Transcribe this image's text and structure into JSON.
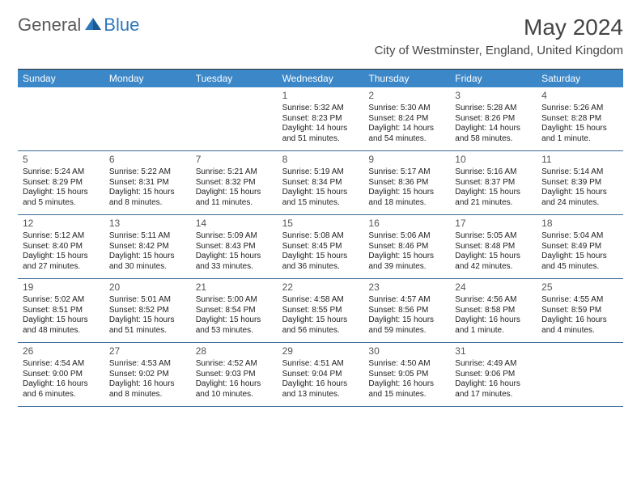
{
  "logo": {
    "general": "General",
    "blue": "Blue"
  },
  "title": "May 2024",
  "location": "City of Westminster, England, United Kingdom",
  "colors": {
    "header_bg": "#3b87c8",
    "week_border": "#3b6a96",
    "logo_gray": "#5a5a5a",
    "logo_blue": "#2f78bd"
  },
  "day_names": [
    "Sunday",
    "Monday",
    "Tuesday",
    "Wednesday",
    "Thursday",
    "Friday",
    "Saturday"
  ],
  "weeks": [
    [
      null,
      null,
      null,
      {
        "n": "1",
        "sr": "Sunrise: 5:32 AM",
        "ss": "Sunset: 8:23 PM",
        "dl1": "Daylight: 14 hours",
        "dl2": "and 51 minutes."
      },
      {
        "n": "2",
        "sr": "Sunrise: 5:30 AM",
        "ss": "Sunset: 8:24 PM",
        "dl1": "Daylight: 14 hours",
        "dl2": "and 54 minutes."
      },
      {
        "n": "3",
        "sr": "Sunrise: 5:28 AM",
        "ss": "Sunset: 8:26 PM",
        "dl1": "Daylight: 14 hours",
        "dl2": "and 58 minutes."
      },
      {
        "n": "4",
        "sr": "Sunrise: 5:26 AM",
        "ss": "Sunset: 8:28 PM",
        "dl1": "Daylight: 15 hours",
        "dl2": "and 1 minute."
      }
    ],
    [
      {
        "n": "5",
        "sr": "Sunrise: 5:24 AM",
        "ss": "Sunset: 8:29 PM",
        "dl1": "Daylight: 15 hours",
        "dl2": "and 5 minutes."
      },
      {
        "n": "6",
        "sr": "Sunrise: 5:22 AM",
        "ss": "Sunset: 8:31 PM",
        "dl1": "Daylight: 15 hours",
        "dl2": "and 8 minutes."
      },
      {
        "n": "7",
        "sr": "Sunrise: 5:21 AM",
        "ss": "Sunset: 8:32 PM",
        "dl1": "Daylight: 15 hours",
        "dl2": "and 11 minutes."
      },
      {
        "n": "8",
        "sr": "Sunrise: 5:19 AM",
        "ss": "Sunset: 8:34 PM",
        "dl1": "Daylight: 15 hours",
        "dl2": "and 15 minutes."
      },
      {
        "n": "9",
        "sr": "Sunrise: 5:17 AM",
        "ss": "Sunset: 8:36 PM",
        "dl1": "Daylight: 15 hours",
        "dl2": "and 18 minutes."
      },
      {
        "n": "10",
        "sr": "Sunrise: 5:16 AM",
        "ss": "Sunset: 8:37 PM",
        "dl1": "Daylight: 15 hours",
        "dl2": "and 21 minutes."
      },
      {
        "n": "11",
        "sr": "Sunrise: 5:14 AM",
        "ss": "Sunset: 8:39 PM",
        "dl1": "Daylight: 15 hours",
        "dl2": "and 24 minutes."
      }
    ],
    [
      {
        "n": "12",
        "sr": "Sunrise: 5:12 AM",
        "ss": "Sunset: 8:40 PM",
        "dl1": "Daylight: 15 hours",
        "dl2": "and 27 minutes."
      },
      {
        "n": "13",
        "sr": "Sunrise: 5:11 AM",
        "ss": "Sunset: 8:42 PM",
        "dl1": "Daylight: 15 hours",
        "dl2": "and 30 minutes."
      },
      {
        "n": "14",
        "sr": "Sunrise: 5:09 AM",
        "ss": "Sunset: 8:43 PM",
        "dl1": "Daylight: 15 hours",
        "dl2": "and 33 minutes."
      },
      {
        "n": "15",
        "sr": "Sunrise: 5:08 AM",
        "ss": "Sunset: 8:45 PM",
        "dl1": "Daylight: 15 hours",
        "dl2": "and 36 minutes."
      },
      {
        "n": "16",
        "sr": "Sunrise: 5:06 AM",
        "ss": "Sunset: 8:46 PM",
        "dl1": "Daylight: 15 hours",
        "dl2": "and 39 minutes."
      },
      {
        "n": "17",
        "sr": "Sunrise: 5:05 AM",
        "ss": "Sunset: 8:48 PM",
        "dl1": "Daylight: 15 hours",
        "dl2": "and 42 minutes."
      },
      {
        "n": "18",
        "sr": "Sunrise: 5:04 AM",
        "ss": "Sunset: 8:49 PM",
        "dl1": "Daylight: 15 hours",
        "dl2": "and 45 minutes."
      }
    ],
    [
      {
        "n": "19",
        "sr": "Sunrise: 5:02 AM",
        "ss": "Sunset: 8:51 PM",
        "dl1": "Daylight: 15 hours",
        "dl2": "and 48 minutes."
      },
      {
        "n": "20",
        "sr": "Sunrise: 5:01 AM",
        "ss": "Sunset: 8:52 PM",
        "dl1": "Daylight: 15 hours",
        "dl2": "and 51 minutes."
      },
      {
        "n": "21",
        "sr": "Sunrise: 5:00 AM",
        "ss": "Sunset: 8:54 PM",
        "dl1": "Daylight: 15 hours",
        "dl2": "and 53 minutes."
      },
      {
        "n": "22",
        "sr": "Sunrise: 4:58 AM",
        "ss": "Sunset: 8:55 PM",
        "dl1": "Daylight: 15 hours",
        "dl2": "and 56 minutes."
      },
      {
        "n": "23",
        "sr": "Sunrise: 4:57 AM",
        "ss": "Sunset: 8:56 PM",
        "dl1": "Daylight: 15 hours",
        "dl2": "and 59 minutes."
      },
      {
        "n": "24",
        "sr": "Sunrise: 4:56 AM",
        "ss": "Sunset: 8:58 PM",
        "dl1": "Daylight: 16 hours",
        "dl2": "and 1 minute."
      },
      {
        "n": "25",
        "sr": "Sunrise: 4:55 AM",
        "ss": "Sunset: 8:59 PM",
        "dl1": "Daylight: 16 hours",
        "dl2": "and 4 minutes."
      }
    ],
    [
      {
        "n": "26",
        "sr": "Sunrise: 4:54 AM",
        "ss": "Sunset: 9:00 PM",
        "dl1": "Daylight: 16 hours",
        "dl2": "and 6 minutes."
      },
      {
        "n": "27",
        "sr": "Sunrise: 4:53 AM",
        "ss": "Sunset: 9:02 PM",
        "dl1": "Daylight: 16 hours",
        "dl2": "and 8 minutes."
      },
      {
        "n": "28",
        "sr": "Sunrise: 4:52 AM",
        "ss": "Sunset: 9:03 PM",
        "dl1": "Daylight: 16 hours",
        "dl2": "and 10 minutes."
      },
      {
        "n": "29",
        "sr": "Sunrise: 4:51 AM",
        "ss": "Sunset: 9:04 PM",
        "dl1": "Daylight: 16 hours",
        "dl2": "and 13 minutes."
      },
      {
        "n": "30",
        "sr": "Sunrise: 4:50 AM",
        "ss": "Sunset: 9:05 PM",
        "dl1": "Daylight: 16 hours",
        "dl2": "and 15 minutes."
      },
      {
        "n": "31",
        "sr": "Sunrise: 4:49 AM",
        "ss": "Sunset: 9:06 PM",
        "dl1": "Daylight: 16 hours",
        "dl2": "and 17 minutes."
      },
      null
    ]
  ]
}
